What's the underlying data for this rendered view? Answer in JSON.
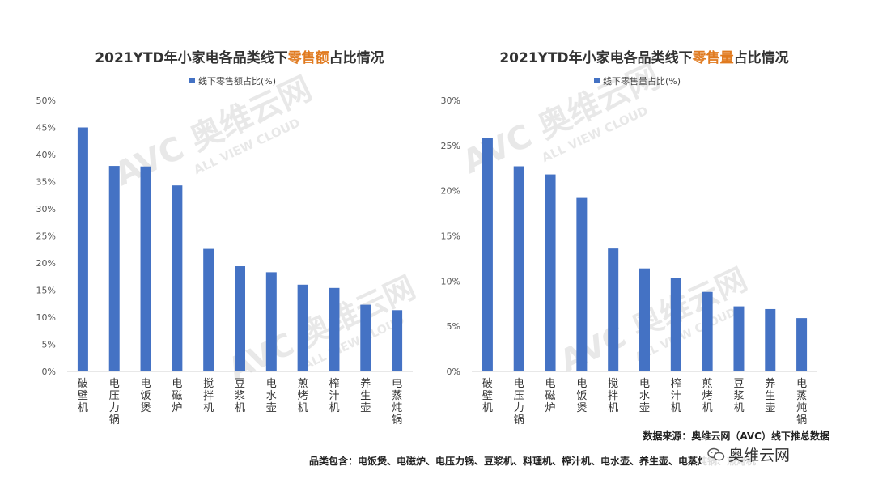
{
  "accent_color": "#e07a1f",
  "bar_color": "#4472c4",
  "watermark": {
    "main": "AVC 奥维云网",
    "sub": "ALL VIEW CLOUD"
  },
  "chart_data": [
    {
      "type": "bar",
      "title_prefix": "2021YTD年小家电各品类线下",
      "title_highlight": "零售额",
      "title_suffix": "占比情况",
      "legend": "线下零售额占比(%)",
      "series": [
        {
          "name": "线下零售额占比(%)",
          "values": [
            45.0,
            37.9,
            37.8,
            34.3,
            22.6,
            19.4,
            18.3,
            16.0,
            15.4,
            12.3,
            11.3
          ]
        }
      ],
      "categories": [
        "破壁机",
        "电压力锅",
        "电饭煲",
        "电磁炉",
        "搅拌机",
        "豆浆机",
        "电水壶",
        "煎烤机",
        "榨汁机",
        "养生壶",
        "电蒸炖锅"
      ],
      "yticks": [
        "0%",
        "5%",
        "10%",
        "15%",
        "20%",
        "25%",
        "30%",
        "35%",
        "40%",
        "45%",
        "50%"
      ],
      "ylim": [
        0,
        50
      ],
      "grid": false,
      "legend_position": "top"
    },
    {
      "type": "bar",
      "title_prefix": "2021YTD年小家电各品类线下",
      "title_highlight": "零售量",
      "title_suffix": "占比情况",
      "legend": "线下零售量占比(%)",
      "series": [
        {
          "name": "线下零售量占比(%)",
          "values": [
            25.8,
            22.7,
            21.8,
            19.2,
            13.6,
            11.4,
            10.3,
            8.8,
            7.2,
            6.9,
            5.9
          ]
        }
      ],
      "categories": [
        "破壁机",
        "电压力锅",
        "电磁炉",
        "电饭煲",
        "搅拌机",
        "电水壶",
        "榨汁机",
        "煎烤机",
        "豆浆机",
        "养生壶",
        "电蒸炖锅"
      ],
      "yticks": [
        "0%",
        "5%",
        "10%",
        "15%",
        "20%",
        "25%",
        "30%"
      ],
      "ylim": [
        0,
        30
      ],
      "grid": false,
      "legend_position": "top"
    }
  ],
  "footer": {
    "source": "数据来源：奥维云网（AVC）线下推总数据",
    "categories_note": "品类包含：电饭煲、电磁炉、电压力锅、豆浆机、料理机、榨汁机、电水壶、养生壶、电蒸炖锅、煎烤机",
    "brand": "奥维云网"
  }
}
